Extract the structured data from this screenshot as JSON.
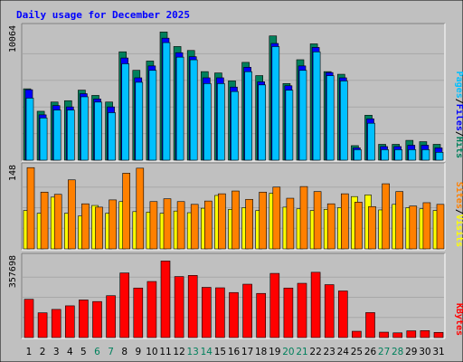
{
  "colors": {
    "background": "#c0c0c0",
    "panel": "#c0c0c0",
    "grid": "#a8a8a8",
    "title": "#0000ff",
    "hits": "#00805c",
    "files": "#0000ff",
    "pages": "#00c0ff",
    "visits": "#ffff00",
    "sites": "#ff8000",
    "kbytes": "#ff0000",
    "weekend": "#00805c",
    "weekday": "#000000"
  },
  "chart_data": [
    {
      "type": "bar",
      "title": "Daily usage for December 2025",
      "scale_label": "10064",
      "ylim": [
        0,
        10064
      ],
      "legend": [
        {
          "text": "Pages",
          "color_key": "pages"
        },
        {
          "text": "/",
          "color_key": "weekday"
        },
        {
          "text": "Files",
          "color_key": "files"
        },
        {
          "text": "/",
          "color_key": "weekday"
        },
        {
          "text": "Hits",
          "color_key": "hits"
        }
      ],
      "categories": [
        "1",
        "2",
        "3",
        "4",
        "5",
        "6",
        "7",
        "8",
        "9",
        "10",
        "11",
        "12",
        "13",
        "14",
        "15",
        "16",
        "17",
        "18",
        "19",
        "20",
        "21",
        "22",
        "23",
        "24",
        "25",
        "26",
        "27",
        "28",
        "29",
        "30",
        "31"
      ],
      "series": [
        {
          "name": "Hits",
          "color_key": "hits",
          "values": [
            5400,
            3700,
            4400,
            4500,
            5300,
            4900,
            4400,
            8200,
            6800,
            7500,
            9700,
            8600,
            8300,
            6700,
            6600,
            6000,
            7400,
            6400,
            9400,
            5800,
            7600,
            8800,
            6700,
            6500,
            1100,
            3400,
            1200,
            1200,
            1500,
            1400,
            1200
          ]
        },
        {
          "name": "Files",
          "color_key": "files",
          "values": [
            5400,
            3500,
            4200,
            4100,
            5100,
            4700,
            4100,
            7800,
            6300,
            7200,
            9300,
            8200,
            7900,
            6300,
            6300,
            5600,
            7100,
            6000,
            8900,
            5700,
            7200,
            8600,
            6700,
            6300,
            1000,
            3200,
            1100,
            1100,
            1200,
            1200,
            1000
          ]
        },
        {
          "name": "Pages",
          "color_key": "pages",
          "values": [
            4900,
            3400,
            4000,
            4000,
            5000,
            4600,
            3800,
            7500,
            6100,
            7000,
            9100,
            8000,
            7800,
            6000,
            6000,
            5400,
            6900,
            5900,
            8800,
            5500,
            7000,
            8400,
            6600,
            6200,
            1000,
            3000,
            1000,
            1000,
            1000,
            1000,
            800
          ]
        }
      ]
    },
    {
      "type": "bar",
      "scale_label": "148",
      "ylim": [
        0,
        148
      ],
      "legend": [
        {
          "text": "Sites",
          "color_key": "sites"
        },
        {
          "text": "/",
          "color_key": "weekday"
        },
        {
          "text": "Visits",
          "color_key": "visits"
        }
      ],
      "categories": [
        "1",
        "2",
        "3",
        "4",
        "5",
        "6",
        "7",
        "8",
        "9",
        "10",
        "11",
        "12",
        "13",
        "14",
        "15",
        "16",
        "17",
        "18",
        "19",
        "20",
        "21",
        "22",
        "23",
        "24",
        "25",
        "26",
        "27",
        "28",
        "29",
        "30",
        "31"
      ],
      "series": [
        {
          "name": "Visits",
          "color_key": "visits",
          "values": [
            69,
            64,
            93,
            64,
            59,
            78,
            64,
            85,
            67,
            66,
            64,
            68,
            65,
            73,
            96,
            71,
            74,
            69,
            100,
            75,
            72,
            69,
            71,
            74,
            94,
            97,
            70,
            80,
            74,
            72,
            69
          ]
        },
        {
          "name": "Sites",
          "color_key": "sites",
          "values": [
            146,
            102,
            98,
            124,
            81,
            75,
            88,
            136,
            145,
            85,
            90,
            85,
            80,
            86,
            99,
            104,
            89,
            102,
            111,
            91,
            112,
            103,
            81,
            99,
            84,
            76,
            117,
            103,
            77,
            83,
            80
          ]
        }
      ]
    },
    {
      "type": "bar",
      "scale_label": "357698",
      "ylim": [
        0,
        357698
      ],
      "legend": [
        {
          "text": "KBytes",
          "color_key": "kbytes"
        }
      ],
      "categories": [
        "1",
        "2",
        "3",
        "4",
        "5",
        "6",
        "7",
        "8",
        "9",
        "10",
        "11",
        "12",
        "13",
        "14",
        "15",
        "16",
        "17",
        "18",
        "19",
        "20",
        "21",
        "22",
        "23",
        "24",
        "25",
        "26",
        "27",
        "28",
        "29",
        "30",
        "31"
      ],
      "series": [
        {
          "name": "KBytes",
          "color_key": "kbytes",
          "values": [
            170000,
            110000,
            125000,
            141000,
            167000,
            160000,
            186000,
            287000,
            220000,
            249000,
            340000,
            271000,
            276000,
            223000,
            221000,
            200000,
            237000,
            196000,
            285000,
            220000,
            241000,
            290000,
            235000,
            207000,
            28000,
            111000,
            24000,
            21000,
            30000,
            31000,
            23000
          ]
        }
      ]
    }
  ],
  "x_axis": {
    "labels": [
      "1",
      "2",
      "3",
      "4",
      "5",
      "6",
      "7",
      "8",
      "9",
      "10",
      "11",
      "12",
      "13",
      "14",
      "15",
      "16",
      "17",
      "18",
      "19",
      "20",
      "21",
      "22",
      "23",
      "24",
      "25",
      "26",
      "27",
      "28",
      "29",
      "30",
      "31"
    ],
    "weekend_days": [
      6,
      7,
      13,
      14,
      20,
      21,
      27,
      28
    ]
  }
}
